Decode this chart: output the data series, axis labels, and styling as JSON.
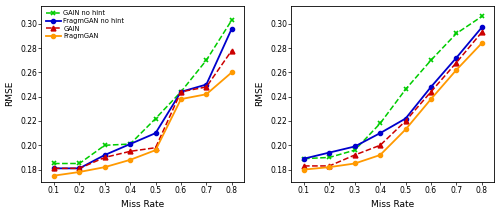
{
  "x": [
    0.1,
    0.2,
    0.3,
    0.4,
    0.5,
    0.6,
    0.7,
    0.8
  ],
  "mcar": {
    "gain_no_hint": [
      0.185,
      0.185,
      0.2,
      0.201,
      0.222,
      0.244,
      0.27,
      0.303
    ],
    "fragmgan_no_hint": [
      0.181,
      0.181,
      0.192,
      0.201,
      0.21,
      0.244,
      0.25,
      0.296
    ],
    "gain": [
      0.181,
      0.181,
      0.19,
      0.195,
      0.198,
      0.244,
      0.248,
      0.278
    ],
    "fragmgan": [
      0.175,
      0.178,
      0.182,
      0.188,
      0.196,
      0.238,
      0.242,
      0.26
    ]
  },
  "mar": {
    "gain_no_hint": [
      0.189,
      0.19,
      0.196,
      0.218,
      0.246,
      0.27,
      0.292,
      0.306
    ],
    "fragmgan_no_hint": [
      0.189,
      0.194,
      0.199,
      0.21,
      0.222,
      0.248,
      0.272,
      0.297
    ],
    "gain": [
      0.183,
      0.183,
      0.192,
      0.2,
      0.22,
      0.244,
      0.268,
      0.293
    ],
    "fragmgan": [
      0.18,
      0.182,
      0.185,
      0.192,
      0.213,
      0.238,
      0.262,
      0.284
    ]
  },
  "colors": {
    "gain_no_hint": "#00cc00",
    "fragmgan_no_hint": "#0000cc",
    "gain": "#cc0000",
    "fragmgan": "#ff9900"
  },
  "legend_labels": [
    "GAIN no hint",
    "FragmGAN no hint",
    "GAIN",
    "FragmGAN"
  ],
  "ylim": [
    0.17,
    0.315
  ],
  "yticks": [
    0.18,
    0.2,
    0.22,
    0.24,
    0.26,
    0.28,
    0.3
  ],
  "ytick_labels": [
    "0.18",
    "0.20",
    "0.22",
    "0.24",
    "0.26",
    "0.28",
    "0.30"
  ],
  "xlim": [
    0.05,
    0.85
  ],
  "xticks": [
    0.1,
    0.2,
    0.3,
    0.4,
    0.5,
    0.6,
    0.7,
    0.8
  ],
  "xlabel": "Miss Rate",
  "ylabel": "RMSE",
  "bg_color": "#ffffff"
}
